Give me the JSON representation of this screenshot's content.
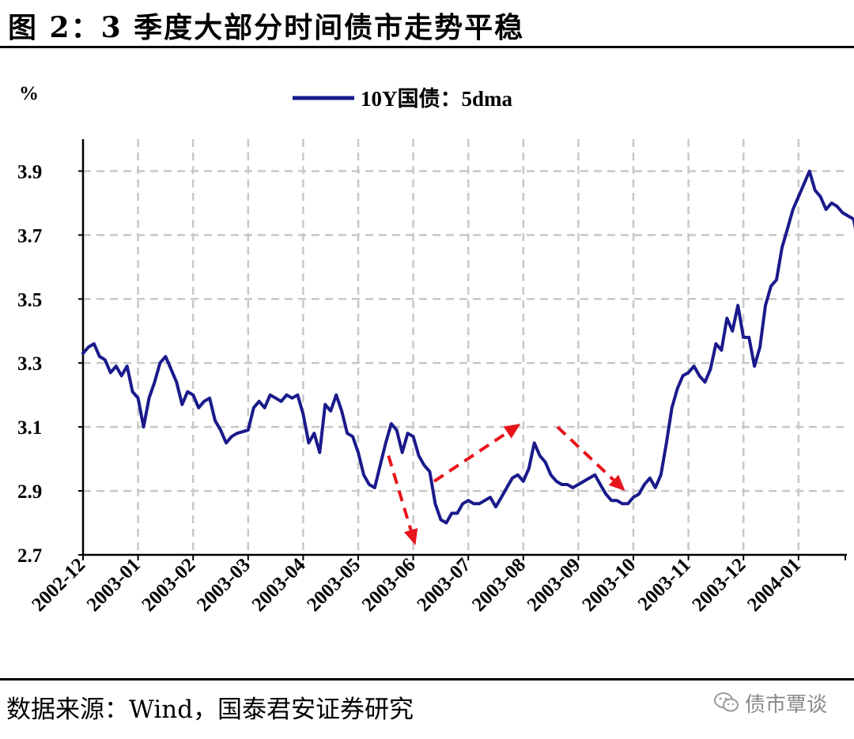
{
  "header": {
    "title": "图 2：3 季度大部分时间债市走势平稳"
  },
  "footer": {
    "source": "数据来源：Wind，国泰君安证券研究",
    "watermark": "债市覃谈",
    "watermark_icon": "wechat-icon"
  },
  "colors": {
    "series": "#1a1a8c",
    "annotation": "#e8141b",
    "grid": "#c8c8c8"
  },
  "chart_data": {
    "type": "line",
    "title": "",
    "ylabel": "%",
    "xlabel": "",
    "ylim": [
      2.7,
      4.0
    ],
    "yticks": [
      "2.7",
      "2.9",
      "3.1",
      "3.3",
      "3.5",
      "3.7",
      "3.9"
    ],
    "xticks": [
      "2002-12",
      "2003-01",
      "2003-02",
      "2003-03",
      "2003-04",
      "2003-05",
      "2003-06",
      "2003-07",
      "2003-08",
      "2003-09",
      "2003-10",
      "2003-11",
      "2003-12",
      "2004-01"
    ],
    "grid": true,
    "legend": "top-center",
    "series": [
      {
        "name": "10Y国债：5dma",
        "color": "#1a1a8c",
        "points": [
          [
            0.0,
            3.33
          ],
          [
            0.1,
            3.35
          ],
          [
            0.2,
            3.36
          ],
          [
            0.3,
            3.32
          ],
          [
            0.4,
            3.31
          ],
          [
            0.5,
            3.27
          ],
          [
            0.6,
            3.29
          ],
          [
            0.7,
            3.26
          ],
          [
            0.8,
            3.29
          ],
          [
            0.9,
            3.21
          ],
          [
            1.0,
            3.19
          ],
          [
            1.1,
            3.1
          ],
          [
            1.2,
            3.19
          ],
          [
            1.3,
            3.24
          ],
          [
            1.4,
            3.3
          ],
          [
            1.5,
            3.32
          ],
          [
            1.6,
            3.28
          ],
          [
            1.7,
            3.24
          ],
          [
            1.8,
            3.17
          ],
          [
            1.9,
            3.21
          ],
          [
            2.0,
            3.2
          ],
          [
            2.1,
            3.16
          ],
          [
            2.2,
            3.18
          ],
          [
            2.3,
            3.19
          ],
          [
            2.4,
            3.12
          ],
          [
            2.5,
            3.09
          ],
          [
            2.6,
            3.05
          ],
          [
            2.7,
            3.07
          ],
          [
            2.8,
            3.08
          ],
          [
            3.0,
            3.09
          ],
          [
            3.1,
            3.16
          ],
          [
            3.2,
            3.18
          ],
          [
            3.3,
            3.16
          ],
          [
            3.4,
            3.2
          ],
          [
            3.5,
            3.19
          ],
          [
            3.6,
            3.18
          ],
          [
            3.7,
            3.2
          ],
          [
            3.8,
            3.19
          ],
          [
            3.9,
            3.2
          ],
          [
            4.0,
            3.14
          ],
          [
            4.1,
            3.05
          ],
          [
            4.2,
            3.08
          ],
          [
            4.3,
            3.02
          ],
          [
            4.4,
            3.17
          ],
          [
            4.5,
            3.15
          ],
          [
            4.6,
            3.2
          ],
          [
            4.7,
            3.15
          ],
          [
            4.8,
            3.08
          ],
          [
            4.9,
            3.07
          ],
          [
            5.0,
            3.02
          ],
          [
            5.1,
            2.95
          ],
          [
            5.2,
            2.92
          ],
          [
            5.3,
            2.91
          ],
          [
            5.4,
            2.98
          ],
          [
            5.5,
            3.05
          ],
          [
            5.6,
            3.11
          ],
          [
            5.7,
            3.09
          ],
          [
            5.8,
            3.02
          ],
          [
            5.9,
            3.08
          ],
          [
            6.0,
            3.07
          ],
          [
            6.1,
            3.01
          ],
          [
            6.2,
            2.98
          ],
          [
            6.3,
            2.96
          ],
          [
            6.4,
            2.86
          ],
          [
            6.5,
            2.81
          ],
          [
            6.6,
            2.8
          ],
          [
            6.7,
            2.83
          ],
          [
            6.8,
            2.83
          ],
          [
            6.9,
            2.86
          ],
          [
            7.0,
            2.87
          ],
          [
            7.1,
            2.86
          ],
          [
            7.2,
            2.86
          ],
          [
            7.3,
            2.87
          ],
          [
            7.4,
            2.88
          ],
          [
            7.5,
            2.85
          ],
          [
            7.6,
            2.88
          ],
          [
            7.7,
            2.91
          ],
          [
            7.8,
            2.94
          ],
          [
            7.9,
            2.95
          ],
          [
            8.0,
            2.93
          ],
          [
            8.1,
            2.97
          ],
          [
            8.2,
            3.05
          ],
          [
            8.3,
            3.01
          ],
          [
            8.4,
            2.99
          ],
          [
            8.5,
            2.95
          ],
          [
            8.6,
            2.93
          ],
          [
            8.7,
            2.92
          ],
          [
            8.8,
            2.92
          ],
          [
            8.9,
            2.91
          ],
          [
            9.0,
            2.92
          ],
          [
            9.1,
            2.93
          ],
          [
            9.2,
            2.94
          ],
          [
            9.3,
            2.95
          ],
          [
            9.4,
            2.92
          ],
          [
            9.5,
            2.89
          ],
          [
            9.6,
            2.87
          ],
          [
            9.7,
            2.87
          ],
          [
            9.8,
            2.86
          ],
          [
            9.9,
            2.86
          ],
          [
            10.0,
            2.88
          ],
          [
            10.1,
            2.89
          ],
          [
            10.2,
            2.92
          ],
          [
            10.3,
            2.94
          ],
          [
            10.4,
            2.91
          ],
          [
            10.5,
            2.95
          ],
          [
            10.6,
            3.05
          ],
          [
            10.7,
            3.16
          ],
          [
            10.8,
            3.22
          ],
          [
            10.9,
            3.26
          ],
          [
            11.0,
            3.27
          ],
          [
            11.1,
            3.29
          ],
          [
            11.2,
            3.26
          ],
          [
            11.3,
            3.24
          ],
          [
            11.4,
            3.28
          ],
          [
            11.5,
            3.36
          ],
          [
            11.6,
            3.34
          ],
          [
            11.7,
            3.44
          ],
          [
            11.8,
            3.4
          ],
          [
            11.9,
            3.48
          ],
          [
            12.0,
            3.38
          ],
          [
            12.1,
            3.38
          ],
          [
            12.2,
            3.29
          ],
          [
            12.3,
            3.35
          ],
          [
            12.4,
            3.48
          ],
          [
            12.5,
            3.54
          ],
          [
            12.6,
            3.56
          ],
          [
            12.7,
            3.66
          ],
          [
            12.8,
            3.72
          ],
          [
            12.9,
            3.78
          ],
          [
            13.0,
            3.82
          ],
          [
            13.1,
            3.86
          ],
          [
            13.2,
            3.9
          ],
          [
            13.3,
            3.84
          ],
          [
            13.4,
            3.82
          ],
          [
            13.5,
            3.78
          ],
          [
            13.6,
            3.8
          ],
          [
            13.7,
            3.79
          ],
          [
            13.8,
            3.77
          ],
          [
            13.9,
            3.76
          ],
          [
            14.0,
            3.75
          ],
          [
            14.05,
            3.71
          ]
        ]
      }
    ],
    "annotations": [
      {
        "type": "dashed-arrow",
        "from": [
          5.55,
          3.01
        ],
        "to": [
          6.04,
          2.73
        ]
      },
      {
        "type": "dashed-arrow",
        "from": [
          6.38,
          2.93
        ],
        "to": [
          7.95,
          3.11
        ]
      },
      {
        "type": "dashed-arrow",
        "from": [
          8.62,
          3.1
        ],
        "to": [
          9.85,
          2.9
        ]
      }
    ]
  }
}
